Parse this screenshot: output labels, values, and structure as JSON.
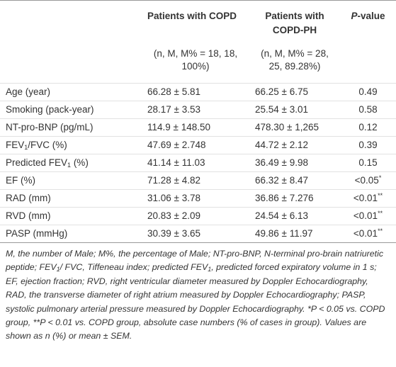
{
  "table": {
    "columns": [
      {
        "title": "Patients with COPD",
        "subtitle": "(n, M, M% = 18, 18, 100%)"
      },
      {
        "title": "Patients with COPD-PH",
        "subtitle": "(n, M, M% = 28, 25, 89.28%)"
      }
    ],
    "p_header": [
      "P",
      "-value"
    ],
    "rows": [
      {
        "label": [
          "Age (year)"
        ],
        "copd": "66.28 ± 5.81",
        "copd_ph": "66.25 ± 6.75",
        "p": [
          "0.49"
        ]
      },
      {
        "label": [
          "Smoking (pack-year)"
        ],
        "copd": "28.17 ± 3.53",
        "copd_ph": "25.54 ± 3.01",
        "p": [
          "0.58"
        ]
      },
      {
        "label": [
          "NT-pro-BNP (pg/mL)"
        ],
        "copd": "114.9 ± 148.50",
        "copd_ph": "478.30 ± 1,265",
        "p": [
          "0.12"
        ]
      },
      {
        "label": [
          "FEV",
          "1",
          "/FVC (%)"
        ],
        "copd": "47.69 ± 2.748",
        "copd_ph": "44.72 ± 2.12",
        "p": [
          "0.39"
        ]
      },
      {
        "label": [
          "Predicted FEV",
          "1",
          " (%)"
        ],
        "copd": "41.14 ± 11.03",
        "copd_ph": "36.49 ± 9.98",
        "p": [
          "0.15"
        ]
      },
      {
        "label": [
          "EF (%)"
        ],
        "copd": "71.28 ± 4.82",
        "copd_ph": "66.32 ± 8.47",
        "p": [
          "<0.05",
          "*"
        ]
      },
      {
        "label": [
          "RAD (mm)"
        ],
        "copd": "31.06 ± 3.78",
        "copd_ph": "36.86 ± 7.276",
        "p": [
          "<0.01",
          "**"
        ]
      },
      {
        "label": [
          "RVD (mm)"
        ],
        "copd": "20.83 ± 2.09",
        "copd_ph": "24.54 ± 6.13",
        "p": [
          "<0.01",
          "**"
        ]
      },
      {
        "label": [
          "PASP (mmHg)"
        ],
        "copd": "30.39 ± 3.65",
        "copd_ph": "49.86 ± 11.97",
        "p": [
          "<0.01",
          "**"
        ]
      }
    ],
    "footnote": [
      "M, the number of Male; M%, the percentage of Male; NT-pro-BNP, N-terminal pro-brain natriuretic peptide; FEV",
      "1",
      "/ FVC, Tiffeneau index; predicted FEV",
      "1",
      ", predicted forced expiratory volume in 1 s; EF, ejection fraction; RVD, right ventricular diameter measured by Doppler Echocardiography, RAD, the transverse diameter of right atrium measured by Doppler Echocardiography; PASP, systolic pulmonary arterial pressure measured by Doppler Echocardiography. *P < 0.05 vs. COPD group, **P < 0.01 vs. COPD group, absolute case numbers (% of cases in group). Values are shown as n (%) or mean ± SEM."
    ]
  }
}
